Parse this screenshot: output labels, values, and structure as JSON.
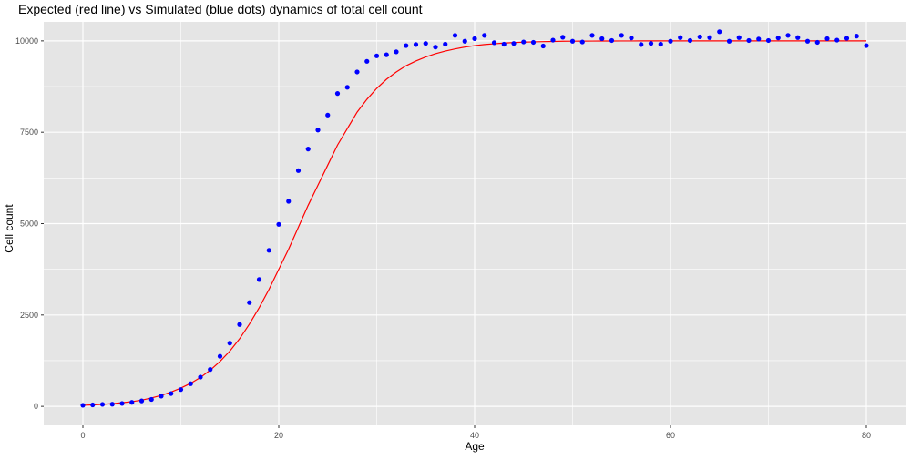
{
  "chart_data": {
    "type": "scatter",
    "title": "Expected (red line) vs Simulated (blue dots) dynamics of total cell count",
    "xlabel": "Age",
    "ylabel": "Cell count",
    "xlim": [
      -4,
      84
    ],
    "ylim": [
      -520,
      10520
    ],
    "x_ticks": [
      0,
      20,
      40,
      60,
      80
    ],
    "y_ticks": [
      0,
      2500,
      5000,
      7500,
      10000
    ],
    "x_tick_labels": [
      "0",
      "20",
      "40",
      "60",
      "80"
    ],
    "y_tick_labels": [
      "0",
      "2500",
      "5000",
      "7500",
      "10000"
    ],
    "grid": true,
    "legend": "none",
    "colors": {
      "panel_background": "#e5e5e5",
      "grid": "#ffffff",
      "expected_line": "#ff0000",
      "simulated_points": "#0000ff"
    },
    "series": [
      {
        "kind": "line",
        "x": [
          0,
          1,
          2,
          3,
          4,
          5,
          6,
          7,
          8,
          9,
          10,
          11,
          12,
          13,
          14,
          15,
          16,
          17,
          18,
          19,
          20,
          21,
          22,
          23,
          24,
          25,
          26,
          27,
          28,
          29,
          30,
          31,
          32,
          33,
          34,
          35,
          36,
          37,
          38,
          39,
          40,
          41,
          42,
          43,
          44,
          45,
          46,
          47,
          48,
          49,
          50,
          51,
          52,
          53,
          54,
          55,
          56,
          57,
          58,
          59,
          60,
          61,
          62,
          63,
          64,
          65,
          66,
          67,
          68,
          69,
          70,
          71,
          72,
          73,
          74,
          75,
          76,
          77,
          78,
          79,
          80
        ],
        "y": [
          30,
          40,
          55,
          75,
          100,
          130,
          170,
          230,
          300,
          390,
          500,
          630,
          790,
          990,
          1230,
          1510,
          1850,
          2250,
          2700,
          3200,
          3750,
          4300,
          4900,
          5500,
          6050,
          6600,
          7150,
          7600,
          8050,
          8400,
          8700,
          8950,
          9150,
          9320,
          9450,
          9560,
          9650,
          9720,
          9780,
          9830,
          9870,
          9900,
          9920,
          9940,
          9955,
          9965,
          9973,
          9980,
          9985,
          9990,
          9992,
          9994,
          9995,
          9996,
          9997,
          9998,
          9998,
          9999,
          9999,
          9999,
          9999,
          10000,
          10000,
          10000,
          10000,
          10000,
          10000,
          10000,
          10000,
          10000,
          10000,
          10000,
          10000,
          10000,
          10000,
          10000,
          10000,
          10000,
          10000,
          10000,
          10000
        ]
      },
      {
        "kind": "points",
        "x": [
          0,
          1,
          2,
          3,
          4,
          5,
          6,
          7,
          8,
          9,
          10,
          11,
          12,
          13,
          14,
          15,
          16,
          17,
          18,
          19,
          20,
          21,
          22,
          23,
          24,
          25,
          26,
          27,
          28,
          29,
          30,
          31,
          32,
          33,
          34,
          35,
          36,
          37,
          38,
          39,
          40,
          41,
          42,
          43,
          44,
          45,
          46,
          47,
          48,
          49,
          50,
          51,
          52,
          53,
          54,
          55,
          56,
          57,
          58,
          59,
          60,
          61,
          62,
          63,
          64,
          65,
          66,
          67,
          68,
          69,
          70,
          71,
          72,
          73,
          74,
          75,
          76,
          77,
          78,
          79,
          80
        ],
        "y": [
          30,
          40,
          55,
          60,
          80,
          110,
          150,
          190,
          280,
          350,
          460,
          620,
          800,
          1010,
          1370,
          1730,
          2240,
          2840,
          3470,
          4270,
          4980,
          5610,
          6450,
          7040,
          7560,
          7970,
          8560,
          8730,
          9150,
          9440,
          9590,
          9620,
          9700,
          9870,
          9900,
          9930,
          9830,
          9910,
          10150,
          9990,
          10060,
          10150,
          9950,
          9910,
          9930,
          9970,
          9960,
          9860,
          10020,
          10100,
          9990,
          9970,
          10150,
          10060,
          10010,
          10150,
          10080,
          9900,
          9930,
          9910,
          9990,
          10090,
          10010,
          10110,
          10090,
          10250,
          9990,
          10090,
          10010,
          10050,
          10010,
          10080,
          10150,
          10090,
          9990,
          9960,
          10060,
          10020,
          10070,
          10130,
          9870
        ]
      }
    ]
  }
}
